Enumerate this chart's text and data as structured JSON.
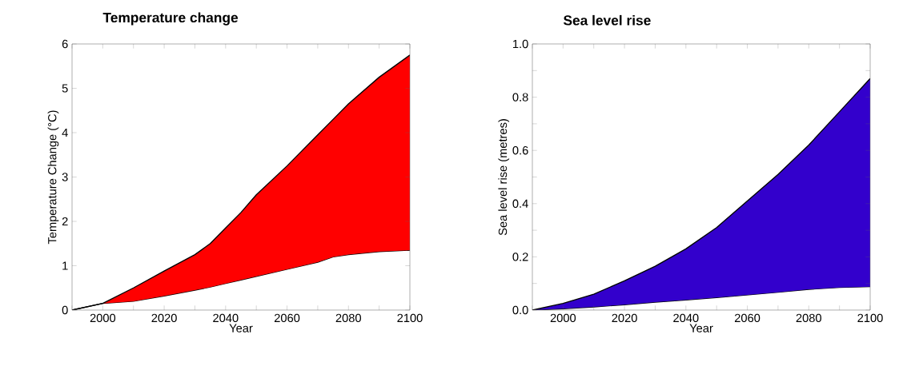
{
  "chart_data": [
    {
      "type": "area",
      "stacked": true,
      "title": "Temperature change",
      "xlabel": "Year",
      "ylabel": "Temperature Change (°C)",
      "x": [
        1990,
        2000,
        2010,
        2020,
        2030,
        2035,
        2040,
        2045,
        2050,
        2060,
        2070,
        2075,
        2080,
        2090,
        2100
      ],
      "series": [
        {
          "color": "#ffffff",
          "values": [
            0,
            0.15,
            0.2,
            0.32,
            0.45,
            0.52,
            0.6,
            0.68,
            0.76,
            0.92,
            1.08,
            1.2,
            1.25,
            1.32,
            1.35
          ]
        },
        {
          "color": "#ff0000",
          "values": [
            0,
            0,
            0.3,
            0.56,
            0.8,
            0.98,
            1.25,
            1.52,
            1.84,
            2.33,
            2.87,
            3.1,
            3.4,
            3.93,
            4.4
          ]
        }
      ],
      "xlim": [
        1990,
        2100
      ],
      "ylim": [
        0,
        6
      ],
      "xticks": [
        {
          "value": 1990,
          "label": null
        },
        2000,
        {
          "value": 2010,
          "label": null
        },
        2020,
        {
          "value": 2030,
          "label": null
        },
        2040,
        {
          "value": 2050,
          "label": null
        },
        2060,
        {
          "value": 2070,
          "label": null
        },
        2080,
        {
          "value": 2090,
          "label": null
        },
        2100
      ],
      "yticks": [
        0,
        1,
        2,
        3,
        4,
        5,
        6
      ]
    },
    {
      "type": "area",
      "stacked": true,
      "title": "Sea level rise",
      "xlabel": "Year",
      "ylabel": "Sea level rise (metres)",
      "x": [
        1990,
        2000,
        2010,
        2020,
        2030,
        2040,
        2050,
        2060,
        2070,
        2080,
        2090,
        2100
      ],
      "series": [
        {
          "color": "#ffffff",
          "values": [
            0,
            0.005,
            0.012,
            0.02,
            0.03,
            0.038,
            0.047,
            0.057,
            0.067,
            0.078,
            0.085,
            0.088
          ]
        },
        {
          "color": "#3300cc",
          "values": [
            0,
            0.02,
            0.048,
            0.09,
            0.135,
            0.192,
            0.263,
            0.353,
            0.443,
            0.542,
            0.66,
            0.782
          ]
        }
      ],
      "xlim": [
        1990,
        2100
      ],
      "ylim": [
        0,
        1
      ],
      "xticks": [
        {
          "value": 1990,
          "label": null
        },
        2000,
        {
          "value": 2010,
          "label": null
        },
        2020,
        {
          "value": 2030,
          "label": null
        },
        2040,
        {
          "value": 2050,
          "label": null
        },
        2060,
        {
          "value": 2070,
          "label": null
        },
        2080,
        {
          "value": 2090,
          "label": null
        },
        2100
      ],
      "yticks": [
        {
          "value": 0,
          "label": "0.0"
        },
        {
          "value": 0.1,
          "label": null
        },
        {
          "value": 0.2,
          "label": "0.2"
        },
        {
          "value": 0.3,
          "label": null
        },
        {
          "value": 0.4,
          "label": "0.4"
        },
        {
          "value": 0.5,
          "label": null
        },
        {
          "value": 0.6,
          "label": "0.6"
        },
        {
          "value": 0.7,
          "label": null
        },
        {
          "value": 0.8,
          "label": "0.8"
        },
        {
          "value": 0.9,
          "label": null
        },
        {
          "value": 1,
          "label": "1.0"
        }
      ]
    }
  ]
}
